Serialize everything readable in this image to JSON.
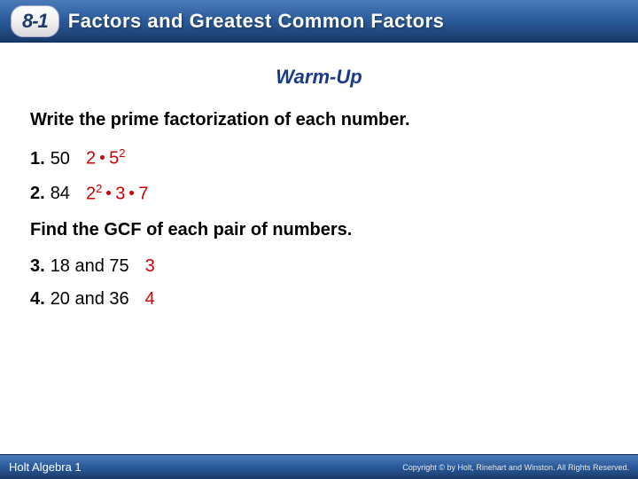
{
  "header": {
    "section_number": "8-1",
    "title": "Factors and Greatest Common Factors"
  },
  "warmup_label": "Warm-Up",
  "instruction1": "Write the prime factorization of each number.",
  "problems_a": [
    {
      "num": "1.",
      "text": "50",
      "answer_parts": [
        {
          "base": "2",
          "exp": ""
        },
        {
          "base": "5",
          "exp": "2"
        }
      ]
    },
    {
      "num": "2.",
      "text": "84",
      "answer_parts": [
        {
          "base": "2",
          "exp": "2"
        },
        {
          "base": "3",
          "exp": ""
        },
        {
          "base": "7",
          "exp": ""
        }
      ]
    }
  ],
  "instruction2": "Find the GCF of each pair of numbers.",
  "problems_b": [
    {
      "num": "3.",
      "text": "18 and 75",
      "answer": "3"
    },
    {
      "num": "4.",
      "text": "20 and 36",
      "answer": "4"
    }
  ],
  "footer": {
    "left": "Holt Algebra 1",
    "right": "Copyright © by Holt, Rinehart and Winston. All Rights Reserved."
  },
  "colors": {
    "header_gradient_top": "#4a7ab8",
    "header_gradient_bottom": "#1a3a6a",
    "warmup_color": "#1a3a8a",
    "answer_color": "#cc0000",
    "text_color": "#000000",
    "background": "#ffffff"
  },
  "typography": {
    "header_title_size": 22,
    "warmup_size": 22,
    "instruction_size": 20,
    "problem_size": 20,
    "footer_left_size": 13,
    "footer_right_size": 9,
    "font_family": "Verdana"
  }
}
